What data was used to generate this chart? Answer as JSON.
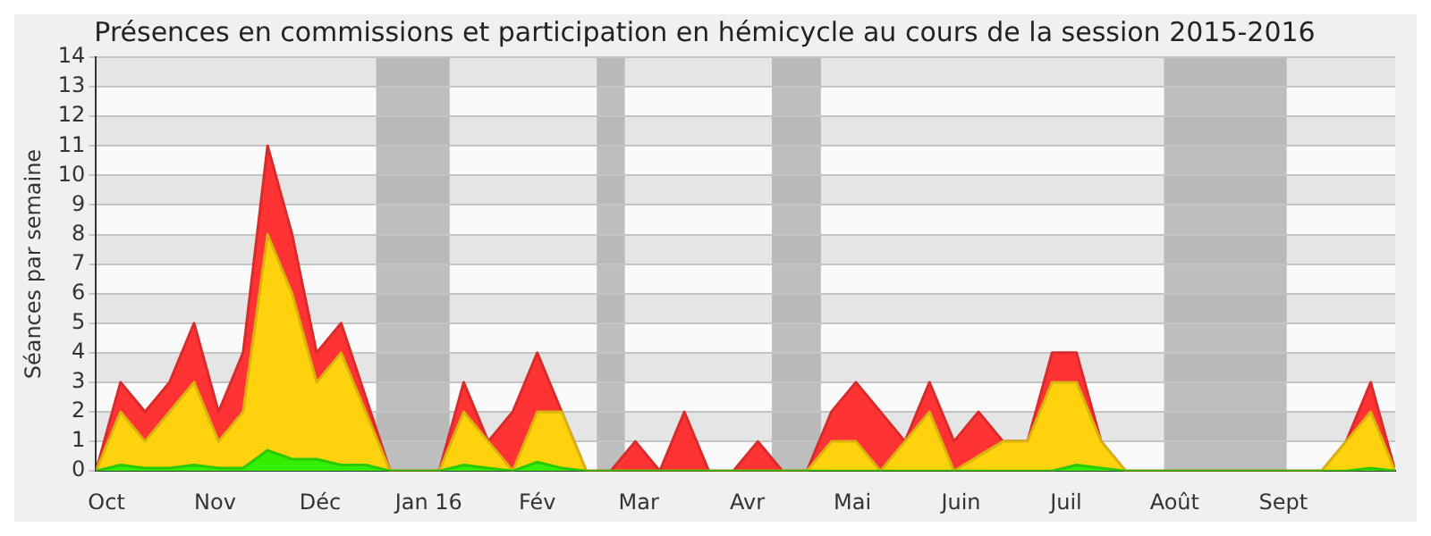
{
  "chart_data": {
    "type": "area",
    "title": "Présences en commissions et participation en hémicycle au cours de la session 2015-2016",
    "ylabel": "Séances par semaine",
    "x": [
      "2015-09-28",
      "2015-10-05",
      "2015-10-12",
      "2015-10-19",
      "2015-10-26",
      "2015-11-02",
      "2015-11-09",
      "2015-11-16",
      "2015-11-23",
      "2015-11-30",
      "2015-12-07",
      "2015-12-14",
      "2015-12-21",
      "2015-12-28",
      "2016-01-04",
      "2016-01-11",
      "2016-01-18",
      "2016-01-25",
      "2016-02-01",
      "2016-02-08",
      "2016-02-15",
      "2016-02-22",
      "2016-02-29",
      "2016-03-07",
      "2016-03-14",
      "2016-03-21",
      "2016-03-28",
      "2016-04-04",
      "2016-04-11",
      "2016-04-18",
      "2016-04-25",
      "2016-05-02",
      "2016-05-09",
      "2016-05-16",
      "2016-05-23",
      "2016-05-30",
      "2016-06-06",
      "2016-06-13",
      "2016-06-20",
      "2016-06-27",
      "2016-07-04",
      "2016-07-11",
      "2016-07-18",
      "2016-07-25",
      "2016-08-01",
      "2016-08-08",
      "2016-08-15",
      "2016-08-22",
      "2016-08-29",
      "2016-09-05",
      "2016-09-12",
      "2016-09-19",
      "2016-09-26",
      "2016-10-03"
    ],
    "stacked": true,
    "series": [
      {
        "color": "#33ee00",
        "values": [
          0,
          0.2,
          0.1,
          0.1,
          0.2,
          0.1,
          0.1,
          0.7,
          0.4,
          0.4,
          0.2,
          0.2,
          0,
          0,
          0,
          0.2,
          0.1,
          0,
          0.3,
          0.1,
          0,
          0,
          0,
          0,
          0,
          0,
          0,
          0,
          0,
          0,
          0,
          0,
          0,
          0,
          0,
          0,
          0,
          0,
          0,
          0,
          0.2,
          0.1,
          0,
          0,
          0,
          0,
          0,
          0,
          0,
          0,
          0,
          0,
          0.1,
          0
        ]
      },
      {
        "color": "#ffd20d",
        "values": [
          0,
          1.8,
          0.9,
          1.9,
          2.8,
          0.9,
          1.9,
          7.3,
          5.6,
          2.6,
          3.8,
          1.8,
          0,
          0,
          0,
          1.8,
          0.9,
          0,
          1.7,
          1.9,
          0,
          0,
          0,
          0,
          0,
          0,
          0,
          0,
          0,
          0,
          1,
          1,
          0,
          1,
          2,
          0,
          0.5,
          1,
          1,
          3,
          2.8,
          0.9,
          0,
          0,
          0,
          0,
          0,
          0,
          0,
          0,
          0,
          1,
          1.9,
          0
        ]
      },
      {
        "color": "#ff3333",
        "values": [
          0,
          1,
          1,
          1,
          2,
          1,
          2,
          3,
          2,
          1,
          1,
          0.5,
          0,
          0,
          0,
          1,
          0,
          2,
          2,
          0,
          0,
          0,
          1,
          0,
          2,
          0,
          0,
          1,
          0,
          0,
          1,
          2,
          2,
          0,
          1,
          1,
          1.5,
          0,
          0,
          1,
          1,
          0,
          0,
          0,
          0,
          0,
          0,
          0,
          0,
          0,
          0,
          0,
          1,
          0
        ]
      }
    ],
    "xlim": [
      "2015-09-28",
      "2016-10-03"
    ],
    "xticks": [
      {
        "value": "2015-10-01",
        "label": "Oct"
      },
      {
        "value": "2015-11-01",
        "label": "Nov"
      },
      {
        "value": "2015-12-01",
        "label": "Déc"
      },
      {
        "value": "2016-01-01",
        "label": "Jan 16"
      },
      {
        "value": "2016-02-01",
        "label": "Fév"
      },
      {
        "value": "2016-03-01",
        "label": "Mar"
      },
      {
        "value": "2016-04-01",
        "label": "Avr"
      },
      {
        "value": "2016-05-01",
        "label": "Mai"
      },
      {
        "value": "2016-06-01",
        "label": "Juin"
      },
      {
        "value": "2016-07-01",
        "label": "Juil"
      },
      {
        "value": "2016-08-01",
        "label": "Août"
      },
      {
        "value": "2016-09-01",
        "label": "Sept"
      }
    ],
    "ylim": [
      0,
      14
    ],
    "yticks": [
      0,
      1,
      2,
      3,
      4,
      5,
      6,
      7,
      8,
      9,
      10,
      11,
      12,
      13,
      14
    ],
    "bands": [
      {
        "axis": "x",
        "from": "2015-12-17",
        "to": "2016-01-07",
        "color": "#aaaaaa"
      },
      {
        "axis": "x",
        "from": "2016-02-18",
        "to": "2016-02-26",
        "color": "#aaaaaa"
      },
      {
        "axis": "x",
        "from": "2016-04-08",
        "to": "2016-04-22",
        "color": "#aaaaaa"
      },
      {
        "axis": "x",
        "from": "2016-07-29",
        "to": "2016-09-02",
        "color": "#aaaaaa"
      }
    ],
    "grid": "y",
    "legend": false
  }
}
